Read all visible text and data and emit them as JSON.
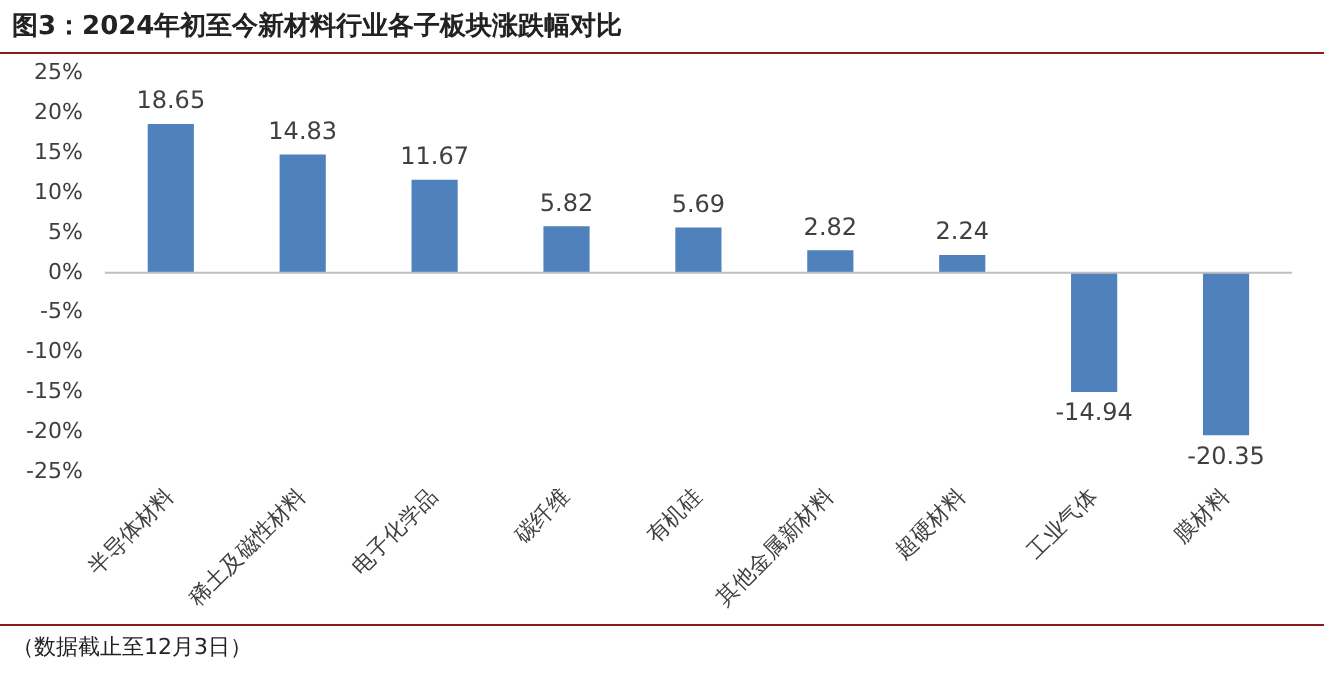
{
  "chart_data": {
    "type": "bar",
    "title": "图3：2024年初至今新材料行业各子板块涨跌幅对比",
    "categories": [
      "半导体材料",
      "稀土及磁性材料",
      "电子化学品",
      "碳纤维",
      "有机硅",
      "其他金属新材料",
      "超硬材料",
      "工业气体",
      "膜材料"
    ],
    "values": [
      18.65,
      14.83,
      11.67,
      5.82,
      5.69,
      2.82,
      2.24,
      -14.94,
      -20.35
    ],
    "color": "#4f81bd",
    "ylim": [
      -25,
      25
    ],
    "yticks": [
      {
        "value": -25,
        "label": "-25%"
      },
      {
        "value": -20,
        "label": "-20%"
      },
      {
        "value": -15,
        "label": "-15%"
      },
      {
        "value": -10,
        "label": "-10%"
      },
      {
        "value": -5,
        "label": "-5%"
      },
      {
        "value": 0,
        "label": "0%"
      },
      {
        "value": 5,
        "label": "5%"
      },
      {
        "value": 10,
        "label": "10%"
      },
      {
        "value": 15,
        "label": "15%"
      },
      {
        "value": 20,
        "label": "20%"
      },
      {
        "value": 25,
        "label": "25%"
      }
    ],
    "data_labels": true,
    "legend": false,
    "annotations": [
      "（数据截止至12月3日）"
    ]
  }
}
